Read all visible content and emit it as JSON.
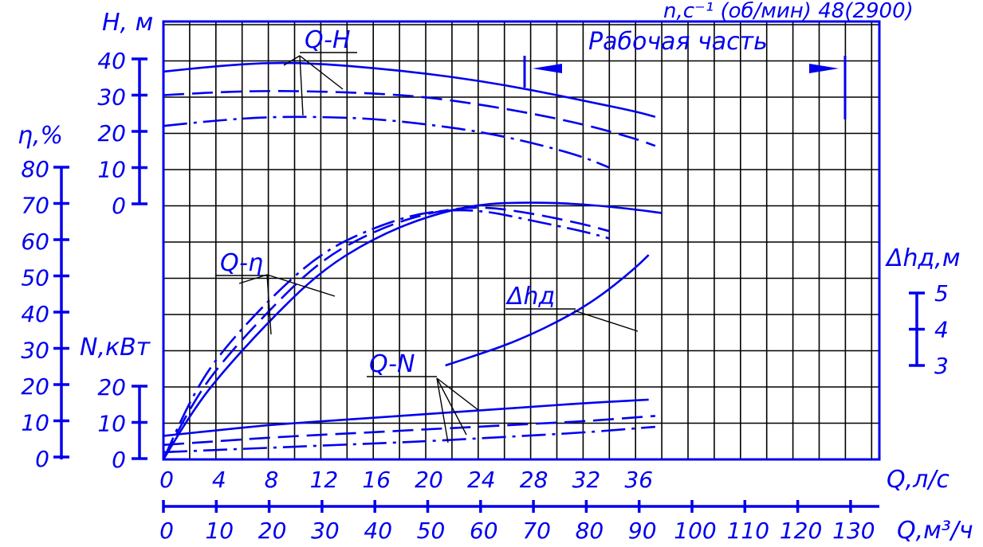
{
  "chart_data": {
    "type": "line",
    "title": "",
    "top_label": "n,с⁻¹ (об/мин) 48(2900)",
    "working_zone_label": "Рабочая часть",
    "x_axis": {
      "label": "Q,л/с",
      "ticks": [
        "0",
        "4",
        "8",
        "12",
        "16",
        "20",
        "24",
        "28",
        "32",
        "36"
      ],
      "range": [
        0,
        38
      ]
    },
    "x2_axis": {
      "label": "Q,м³/ч",
      "ticks": [
        "0",
        "10",
        "20",
        "30",
        "40",
        "50",
        "60",
        "70",
        "80",
        "90",
        "100",
        "110",
        "120",
        "130"
      ]
    },
    "h_axis": {
      "label": "Н, м",
      "ticks": [
        "40",
        "30",
        "20",
        "10",
        "0"
      ]
    },
    "eta_axis": {
      "label": "η,%",
      "ticks": [
        "80",
        "70",
        "60",
        "50",
        "40",
        "30",
        "20",
        "10",
        "0"
      ]
    },
    "n_axis": {
      "label": "N,кВт",
      "ticks": [
        "20",
        "10",
        "0"
      ]
    },
    "dh_axis": {
      "label": "Δhд,м",
      "ticks": [
        "5",
        "4",
        "3"
      ]
    },
    "curve_labels": {
      "qh": "Q-H",
      "qeta": "Q-η",
      "qn": "Q-N",
      "dh": "Δhд"
    },
    "series": [
      {
        "group": "Q-H",
        "style": "solid",
        "x": [
          0,
          4,
          8,
          12,
          16,
          20,
          24,
          28,
          32,
          36,
          37.5
        ],
        "y": [
          36.5,
          38,
          39,
          38.7,
          37.5,
          36,
          34,
          31.5,
          28.5,
          25.5,
          24
        ]
      },
      {
        "group": "Q-H",
        "style": "dashed",
        "x": [
          0,
          4,
          8,
          12,
          16,
          20,
          24,
          28,
          32,
          36,
          37.5
        ],
        "y": [
          30,
          30.8,
          31.2,
          31,
          30.5,
          29.5,
          27.5,
          25,
          22,
          18,
          16
        ]
      },
      {
        "group": "Q-H",
        "style": "dashdot",
        "x": [
          0,
          4,
          8,
          12,
          16,
          20,
          24,
          28,
          32,
          34
        ],
        "y": [
          21.5,
          23,
          24,
          24,
          23.5,
          22,
          20,
          17,
          13,
          10
        ]
      },
      {
        "group": "Q-η",
        "style": "solid",
        "x": [
          0,
          2,
          4,
          8,
          12,
          16,
          20,
          24,
          28,
          32,
          36,
          38
        ],
        "y": [
          0,
          12,
          22,
          38,
          52,
          61,
          67,
          70.5,
          71,
          70.5,
          69,
          68
        ]
      },
      {
        "group": "Q-η",
        "style": "dashed",
        "x": [
          0,
          2,
          4,
          8,
          12,
          16,
          20,
          24,
          28,
          32,
          34
        ],
        "y": [
          0,
          14,
          25,
          41,
          55,
          63,
          68,
          70,
          68,
          65,
          63
        ]
      },
      {
        "group": "Q-η",
        "style": "dashdot",
        "x": [
          0,
          2,
          4,
          8,
          12,
          16,
          20,
          24,
          28,
          32,
          34
        ],
        "y": [
          0,
          16,
          28,
          44,
          57,
          64,
          68.5,
          69,
          66,
          63,
          61
        ]
      },
      {
        "group": "Q-N",
        "style": "solid",
        "x": [
          0,
          4,
          8,
          12,
          16,
          20,
          24,
          28,
          32,
          37
        ],
        "y": [
          6.5,
          8,
          9.5,
          10.5,
          11.5,
          12.5,
          13.5,
          14.5,
          15.5,
          16.5
        ]
      },
      {
        "group": "Q-N",
        "style": "dashed",
        "x": [
          0,
          4,
          8,
          12,
          16,
          20,
          24,
          28,
          32,
          37.5
        ],
        "y": [
          4,
          5,
          6,
          6.8,
          7.5,
          8.3,
          9,
          9.8,
          10.5,
          12
        ]
      },
      {
        "group": "Q-N",
        "style": "dashdot",
        "x": [
          0,
          4,
          8,
          12,
          16,
          20,
          24,
          28,
          32,
          37.5
        ],
        "y": [
          2,
          2.6,
          3.2,
          3.8,
          4.4,
          5,
          5.8,
          6.6,
          7.4,
          9
        ]
      },
      {
        "group": "Δhд",
        "style": "solid",
        "x": [
          21.5,
          24,
          26,
          28,
          30,
          32,
          34,
          36,
          37
        ],
        "y": [
          3.0,
          3.3,
          3.55,
          3.85,
          4.2,
          4.6,
          5.1,
          5.7,
          6.05
        ]
      }
    ],
    "grid": true
  }
}
